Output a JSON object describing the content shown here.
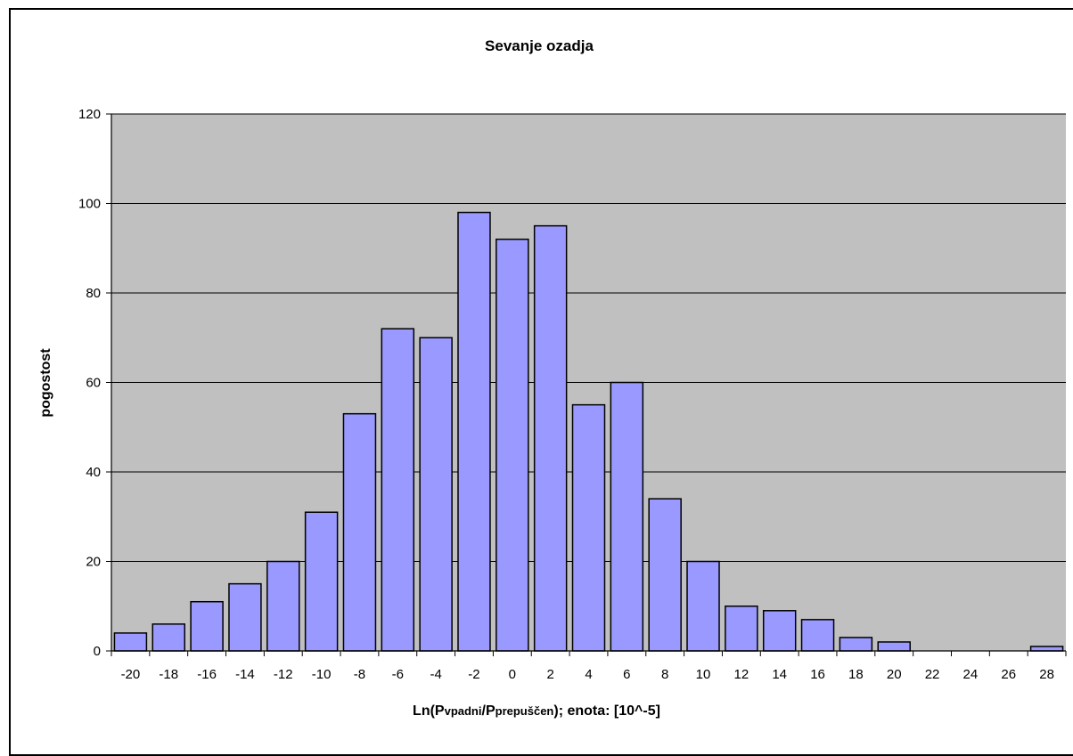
{
  "chart_data": {
    "type": "bar",
    "title": "Sevanje ozadja",
    "ylabel": "pogostost",
    "xlabel": {
      "prefix": "Ln(P",
      "sub1": "vpadni",
      "mid": "/P",
      "sub2": "prepuščen",
      "suffix": "); enota: [10^-5]"
    },
    "categories": [
      "-20",
      "-18",
      "-16",
      "-14",
      "-12",
      "-10",
      "-8",
      "-6",
      "-4",
      "-2",
      "0",
      "2",
      "4",
      "6",
      "8",
      "10",
      "12",
      "14",
      "16",
      "18",
      "20",
      "22",
      "24",
      "26",
      "28"
    ],
    "values": [
      4,
      6,
      11,
      15,
      20,
      31,
      53,
      72,
      70,
      98,
      92,
      95,
      55,
      60,
      34,
      20,
      10,
      9,
      7,
      3,
      2,
      0,
      0,
      0,
      1
    ],
    "ylim": [
      0,
      120
    ],
    "yticks": [
      0,
      20,
      40,
      60,
      80,
      100,
      120
    ],
    "grid": true,
    "legend": "none",
    "colors": {
      "plot_background": "#c0c0c0",
      "bar_fill": "#9999ff",
      "bar_stroke": "#000000",
      "gridline": "#000000"
    }
  }
}
